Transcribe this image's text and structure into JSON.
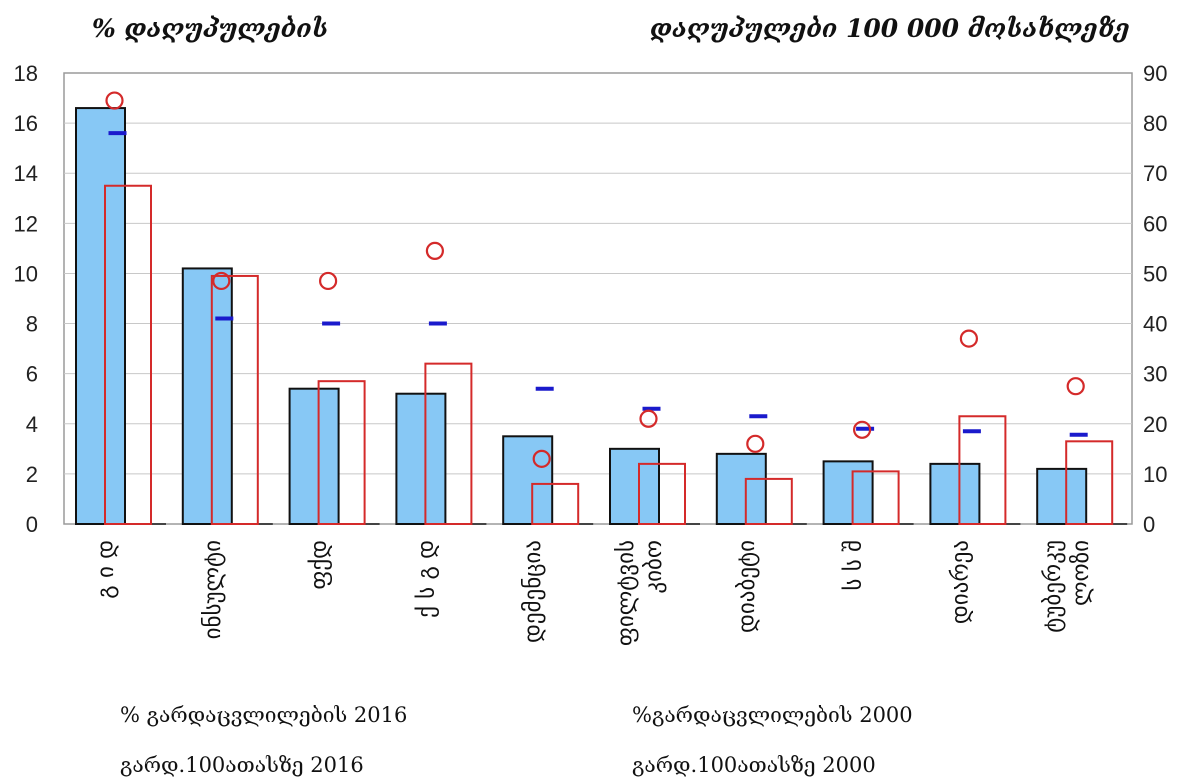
{
  "chart_data": {
    "type": "bar",
    "title": "",
    "ylabel_left": "% დაღუპულების",
    "ylabel_right": "დაღუპულები 100 000 მოსახლეზე",
    "ylim_left": [
      0,
      18
    ],
    "ylim_right": [
      0,
      90
    ],
    "yticks_left": [
      "0",
      "2",
      "4",
      "6",
      "8",
      "10",
      "12",
      "14",
      "16",
      "18"
    ],
    "yticks_right": [
      "0",
      "10",
      "20",
      "30",
      "40",
      "50",
      "60",
      "70",
      "80",
      "90"
    ],
    "grid": true,
    "categories": [
      [
        "გ ი დ"
      ],
      [
        "ინსულტი"
      ],
      [
        "ფქდ"
      ],
      [
        "ქ ს გ დ"
      ],
      [
        "დემენცია"
      ],
      [
        "ფილტვის",
        "კიბო"
      ],
      [
        "დიაბეტი"
      ],
      [
        "ს ს შ"
      ],
      [
        "დიარეა"
      ],
      [
        "ტუბერკუ",
        "ლოზი"
      ]
    ],
    "series": [
      {
        "name": "% გარდაცვლილების 2016",
        "axis": "left",
        "style": "filled-bar",
        "color": "#87c8f5",
        "values": [
          16.6,
          10.2,
          5.4,
          5.2,
          3.5,
          3.0,
          2.8,
          2.5,
          2.4,
          2.2
        ]
      },
      {
        "name": "%გარდაცვლილების 2000",
        "axis": "left",
        "style": "outline-bar",
        "color": "#d42a2a",
        "values": [
          13.5,
          9.9,
          5.7,
          6.4,
          1.6,
          2.4,
          1.8,
          2.1,
          4.3,
          3.3
        ]
      },
      {
        "name": "გარდ.100ათასზე  2016",
        "axis": "right",
        "style": "dash",
        "color": "#1a1acc",
        "values": [
          78,
          41,
          40,
          40,
          27,
          23,
          21.5,
          19,
          18.5,
          17.8
        ]
      },
      {
        "name": "გარდ.100ათასზე  2000",
        "axis": "right",
        "style": "circle",
        "color": "#d42a2a",
        "values": [
          84.5,
          48.5,
          48.5,
          54.5,
          13,
          21,
          16,
          18.8,
          37,
          27.5
        ]
      }
    ]
  }
}
